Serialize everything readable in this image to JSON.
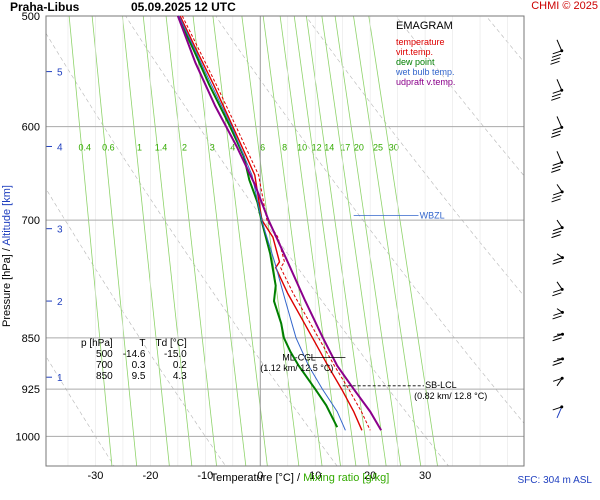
{
  "header": {
    "station": "Praha-Libus",
    "datetime": "05.09.2025 12 UTC",
    "copyright": "CHMI © 2025"
  },
  "legend": {
    "title": "EMAGRAM",
    "items": [
      {
        "label": "temperature",
        "color": "#dd0000"
      },
      {
        "label": "virt.temp.",
        "color": "#dd0000"
      },
      {
        "label": "dew point",
        "color": "#007f00"
      },
      {
        "label": "wet bulb temp.",
        "color": "#3366cc"
      },
      {
        "label": "udpraft v.temp.",
        "color": "#8b008b"
      }
    ]
  },
  "axes": {
    "ylabel_pressure": "Pressure [hPa]",
    "ylabel_sep": " / ",
    "ylabel_altitude": "Altitude [km]",
    "xlabel_temperature": "Temperature [°C]",
    "xlabel_sep": " / ",
    "xlabel_mixing": "Mixing ratio [g/kg]"
  },
  "footer": {
    "sfc": "SFC: 304 m ASL"
  },
  "table": {
    "headers": [
      "p [hPa]",
      "T",
      "Td [°C]"
    ],
    "rows": [
      [
        "500",
        "-14.6",
        "-15.0"
      ],
      [
        "700",
        "0.3",
        "0.2"
      ],
      [
        "850",
        "9.5",
        "4.3"
      ]
    ]
  },
  "chart_data": {
    "type": "line",
    "title": "EMAGRAM",
    "xlabel": "Temperature [°C] / Mixing ratio [g/kg]",
    "ylabel": "Pressure [hPa] / Altitude [km]",
    "x_axis": {
      "ticks": [
        -30,
        -20,
        -10,
        0,
        10,
        20,
        30
      ],
      "range": [
        -39,
        48
      ]
    },
    "y_axis": {
      "scale": "log",
      "ticks": [
        500,
        600,
        700,
        850,
        925,
        1000
      ],
      "range": [
        500,
        1050
      ]
    },
    "altitude_ticks_km": [
      {
        "label": "1",
        "p": 907
      },
      {
        "label": "2",
        "p": 800
      },
      {
        "label": "3",
        "p": 710
      },
      {
        "label": "4",
        "p": 620
      },
      {
        "label": "5",
        "p": 548
      }
    ],
    "mixing_ratio_labels": [
      "0.4",
      "0.6",
      "1",
      "1.4",
      "2",
      "3",
      "4",
      "6",
      "8",
      "10",
      "12",
      "14",
      "17",
      "20",
      "25",
      "30"
    ],
    "mixing_ratio_values": [
      0.4,
      0.6,
      1,
      1.4,
      2,
      3,
      4,
      6,
      8,
      10,
      12,
      14,
      17,
      20,
      25,
      30
    ],
    "series": [
      {
        "name": "temperature",
        "color": "#dd0000",
        "points": [
          [
            500,
            -14.6
          ],
          [
            530,
            -11.5
          ],
          [
            560,
            -8.5
          ],
          [
            600,
            -5
          ],
          [
            650,
            -1
          ],
          [
            700,
            0.3
          ],
          [
            720,
            2.3
          ],
          [
            750,
            3.5
          ],
          [
            757,
            2.8
          ],
          [
            790,
            5
          ],
          [
            850,
            9.5
          ],
          [
            890,
            12.3
          ],
          [
            925,
            14.8
          ],
          [
            960,
            17
          ],
          [
            990,
            18.5
          ]
        ]
      },
      {
        "name": "virt.temp.",
        "color": "#dd0000",
        "points": [
          [
            500,
            -14.2
          ],
          [
            530,
            -11
          ],
          [
            560,
            -8
          ],
          [
            600,
            -4.4
          ],
          [
            650,
            -0.3
          ],
          [
            700,
            1.2
          ],
          [
            720,
            3.2
          ],
          [
            750,
            4.4
          ],
          [
            757,
            3.7
          ],
          [
            790,
            6
          ],
          [
            850,
            10.6
          ],
          [
            890,
            13.5
          ],
          [
            925,
            16.1
          ],
          [
            960,
            18.4
          ],
          [
            990,
            20
          ]
        ]
      },
      {
        "name": "dew point",
        "color": "#007f00",
        "points": [
          [
            500,
            -15
          ],
          [
            530,
            -12
          ],
          [
            560,
            -9.3
          ],
          [
            600,
            -5.5
          ],
          [
            630,
            -3
          ],
          [
            655,
            -2
          ],
          [
            680,
            -0.5
          ],
          [
            700,
            0.2
          ],
          [
            740,
            1.8
          ],
          [
            780,
            2.8
          ],
          [
            800,
            2.5
          ],
          [
            830,
            3.8
          ],
          [
            850,
            4.3
          ],
          [
            870,
            5.5
          ],
          [
            890,
            7
          ],
          [
            925,
            10
          ],
          [
            950,
            12
          ],
          [
            985,
            14
          ]
        ]
      },
      {
        "name": "wet bulb temp.",
        "color": "#3366cc",
        "points": [
          [
            500,
            -14.8
          ],
          [
            560,
            -8.9
          ],
          [
            600,
            -5.2
          ],
          [
            650,
            -1.5
          ],
          [
            700,
            0.25
          ],
          [
            750,
            2.6
          ],
          [
            800,
            4.6
          ],
          [
            850,
            6.5
          ],
          [
            890,
            8.8
          ],
          [
            925,
            11.3
          ],
          [
            960,
            14
          ],
          [
            990,
            15.5
          ]
        ]
      },
      {
        "name": "udpraft v.temp.",
        "color": "#8b008b",
        "points": [
          [
            500,
            -15
          ],
          [
            540,
            -11.8
          ],
          [
            580,
            -8.2
          ],
          [
            620,
            -4.3
          ],
          [
            660,
            -1
          ],
          [
            700,
            1.5
          ],
          [
            750,
            5
          ],
          [
            800,
            8.2
          ],
          [
            850,
            11.4
          ],
          [
            890,
            14
          ],
          [
            925,
            17
          ],
          [
            960,
            20
          ],
          [
            990,
            22
          ]
        ]
      }
    ],
    "annotations": [
      {
        "label": "WBZL",
        "p": 698,
        "t": 29,
        "color": "#3366cc"
      },
      {
        "label": "ML-CCL",
        "p": 882,
        "t": 4
      },
      {
        "label": "(1.12 km/ 12.5 °C)",
        "p": 898,
        "t": 0
      },
      {
        "label": "SB-LCL",
        "p": 923,
        "t": 30
      },
      {
        "label": "(0.82 km/ 12.8 °C)",
        "p": 940,
        "t": 28
      }
    ],
    "wind_barbs": [
      {
        "p": 520,
        "dir": 300,
        "kt": 35
      },
      {
        "p": 555,
        "dir": 300,
        "kt": 30
      },
      {
        "p": 590,
        "dir": 300,
        "kt": 30
      },
      {
        "p": 625,
        "dir": 300,
        "kt": 25
      },
      {
        "p": 660,
        "dir": 290,
        "kt": 25
      },
      {
        "p": 700,
        "dir": 290,
        "kt": 25
      },
      {
        "p": 740,
        "dir": 280,
        "kt": 20
      },
      {
        "p": 775,
        "dir": 290,
        "kt": 15
      },
      {
        "p": 810,
        "dir": 280,
        "kt": 15
      },
      {
        "p": 845,
        "dir": 270,
        "kt": 15
      },
      {
        "p": 880,
        "dir": 270,
        "kt": 15
      },
      {
        "p": 920,
        "dir": 250,
        "kt": 10
      },
      {
        "p": 970,
        "dir": 240,
        "kt": 10
      }
    ],
    "grid": true
  }
}
